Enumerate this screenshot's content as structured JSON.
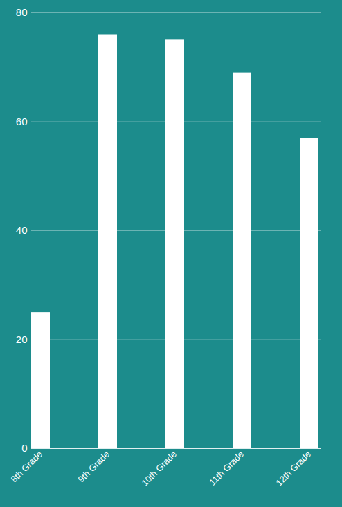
{
  "chart_data": {
    "type": "bar",
    "categories": [
      "8th Grade",
      "9th Grade",
      "10th Grade",
      "11th Grade",
      "12th Grade"
    ],
    "values": [
      25,
      76,
      75,
      69,
      57
    ],
    "color": "#ffffff",
    "ylim": [
      0,
      80
    ],
    "yticks": [
      0,
      20,
      40,
      60,
      80
    ],
    "grid": true
  }
}
